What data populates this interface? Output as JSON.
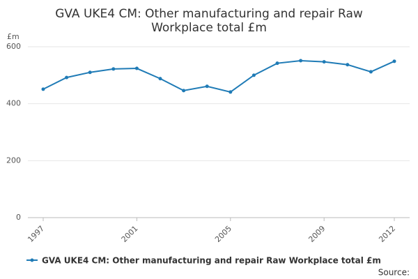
{
  "chart_data": {
    "type": "line",
    "title": [
      "GVA UKE4 CM: Other manufacturing and repair Raw",
      "Workplace total £m"
    ],
    "y_label": "£m",
    "source": "Source:",
    "x": [
      1997,
      1998,
      1999,
      2000,
      2001,
      2002,
      2003,
      2004,
      2005,
      2006,
      2007,
      2008,
      2009,
      2010,
      2011,
      2012
    ],
    "series": [
      {
        "name": "GVA UKE4 CM: Other manufacturing and repair Raw Workplace total £m",
        "color": "#1f7bb6",
        "values": [
          451,
          492,
          510,
          522,
          524,
          488,
          446,
          461,
          441,
          500,
          542,
          551,
          547,
          537,
          512,
          549
        ]
      }
    ],
    "xlim": [
      1997,
      2012
    ],
    "xticks": [
      1997,
      2001,
      2005,
      2009,
      2012
    ],
    "ylim": [
      0,
      600
    ],
    "yticks": [
      0,
      200,
      400,
      600
    ],
    "grid": true
  }
}
